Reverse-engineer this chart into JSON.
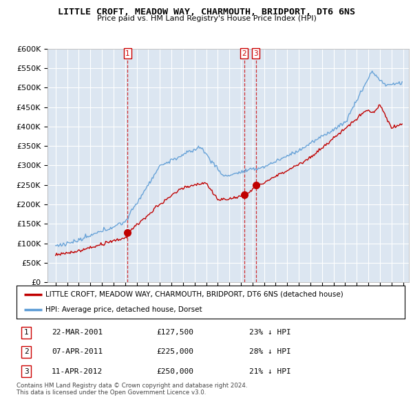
{
  "title": "LITTLE CROFT, MEADOW WAY, CHARMOUTH, BRIDPORT, DT6 6NS",
  "subtitle": "Price paid vs. HM Land Registry's House Price Index (HPI)",
  "legend_line1": "LITTLE CROFT, MEADOW WAY, CHARMOUTH, BRIDPORT, DT6 6NS (detached house)",
  "legend_line2": "HPI: Average price, detached house, Dorset",
  "footnote1": "Contains HM Land Registry data © Crown copyright and database right 2024.",
  "footnote2": "This data is licensed under the Open Government Licence v3.0.",
  "transactions": [
    {
      "num": 1,
      "date": "22-MAR-2001",
      "price": 127500,
      "pct": "23%",
      "dir": "↓"
    },
    {
      "num": 2,
      "date": "07-APR-2011",
      "price": 225000,
      "pct": "28%",
      "dir": "↓"
    },
    {
      "num": 3,
      "date": "11-APR-2012",
      "price": 250000,
      "pct": "21%",
      "dir": "↓"
    }
  ],
  "transaction_years": [
    2001.22,
    2011.27,
    2012.28
  ],
  "transaction_prices": [
    127500,
    225000,
    250000
  ],
  "hpi_color": "#5b9bd5",
  "price_color": "#c00000",
  "vline_color": "#cc0000",
  "chart_bg": "#dce6f1",
  "background_color": "#ffffff",
  "grid_color": "#ffffff",
  "ylim": [
    0,
    600000
  ],
  "yticks": [
    0,
    50000,
    100000,
    150000,
    200000,
    250000,
    300000,
    350000,
    400000,
    450000,
    500000,
    550000,
    600000
  ]
}
